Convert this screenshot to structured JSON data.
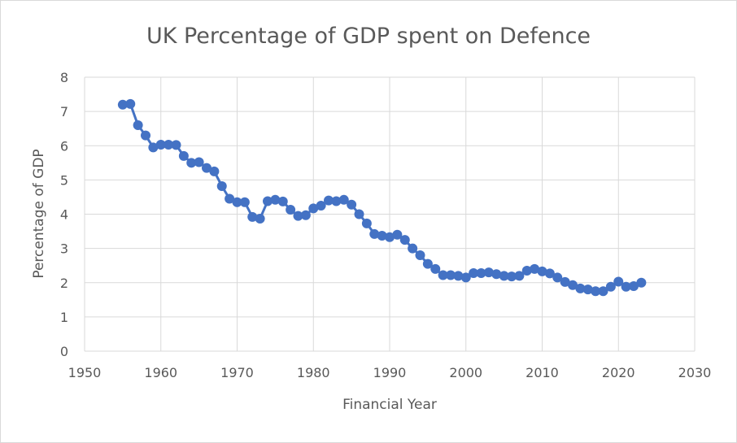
{
  "chart_data": {
    "type": "line",
    "title": "UK Percentage of GDP spent on Defence",
    "xlabel": "Financial Year",
    "ylabel": "Percentage of GDP",
    "xlim": [
      1950,
      2030
    ],
    "ylim": [
      0,
      8
    ],
    "x_ticks": [
      "1950",
      "1960",
      "1970",
      "1980",
      "1990",
      "2000",
      "2010",
      "2020",
      "2030"
    ],
    "y_ticks": [
      "0",
      "1",
      "2",
      "3",
      "4",
      "5",
      "6",
      "7",
      "8"
    ],
    "grid": true,
    "legend": "none",
    "series_color": "#4472c4",
    "series": [
      {
        "x": [
          1955,
          1956,
          1957,
          1958,
          1959,
          1960,
          1961,
          1962,
          1963,
          1964,
          1965,
          1966,
          1967,
          1968,
          1969,
          1970,
          1971,
          1972,
          1973,
          1974,
          1975,
          1976,
          1977,
          1978,
          1979,
          1980,
          1981,
          1982,
          1983,
          1984,
          1985,
          1986,
          1987,
          1988,
          1989,
          1990,
          1991,
          1992,
          1993,
          1994,
          1995,
          1996,
          1997,
          1998,
          1999,
          2000,
          2001,
          2002,
          2003,
          2004,
          2005,
          2006,
          2007,
          2008,
          2009,
          2010,
          2011,
          2012,
          2013,
          2014,
          2015,
          2016,
          2017,
          2018,
          2019,
          2020,
          2021,
          2022,
          2023
        ],
        "values": [
          7.2,
          7.22,
          6.6,
          6.3,
          5.95,
          6.03,
          6.03,
          6.02,
          5.7,
          5.5,
          5.52,
          5.35,
          5.25,
          4.82,
          4.45,
          4.35,
          4.35,
          3.92,
          3.87,
          4.38,
          4.42,
          4.37,
          4.13,
          3.95,
          3.97,
          4.17,
          4.25,
          4.4,
          4.38,
          4.42,
          4.28,
          4.0,
          3.73,
          3.42,
          3.37,
          3.33,
          3.4,
          3.25,
          3.0,
          2.8,
          2.55,
          2.4,
          2.22,
          2.22,
          2.2,
          2.15,
          2.28,
          2.28,
          2.3,
          2.25,
          2.2,
          2.18,
          2.2,
          2.35,
          2.4,
          2.33,
          2.27,
          2.15,
          2.02,
          1.93,
          1.83,
          1.8,
          1.75,
          1.75,
          1.88,
          2.03,
          1.88,
          1.9,
          2.0
        ]
      }
    ]
  }
}
